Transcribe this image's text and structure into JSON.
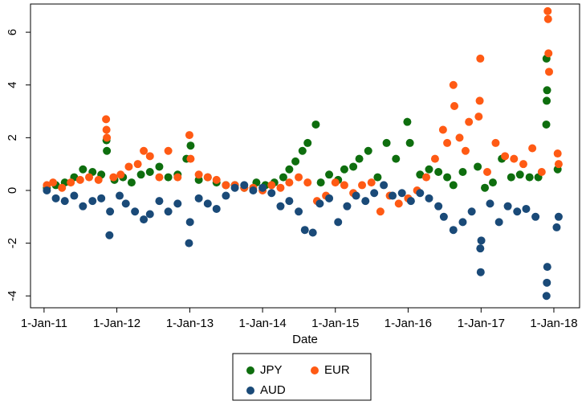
{
  "chart_data": {
    "type": "scatter",
    "x_label": "Date",
    "xlim": [
      "2010-10-25",
      "2018-05-10"
    ],
    "xticks": [
      {
        "value": "2011-01-01",
        "label": "1-Jan-11"
      },
      {
        "value": "2012-01-01",
        "label": "1-Jan-12"
      },
      {
        "value": "2013-01-01",
        "label": "1-Jan-13"
      },
      {
        "value": "2014-01-01",
        "label": "1-Jan-14"
      },
      {
        "value": "2015-01-01",
        "label": "1-Jan-15"
      },
      {
        "value": "2016-01-01",
        "label": "1-Jan-16"
      },
      {
        "value": "2017-01-01",
        "label": "1-Jan-17"
      },
      {
        "value": "2018-01-01",
        "label": "1-Jan-18"
      }
    ],
    "ylim": [
      -4.45,
      7.07
    ],
    "yticks": [
      -4,
      -2,
      0,
      2,
      4,
      6
    ],
    "grid": false,
    "legend": "bottom",
    "series": [
      {
        "name": "JPY",
        "color": "#0e6e0e",
        "x": [
          "2011-01-15",
          "2011-03-01",
          "2011-04-15",
          "2011-06-01",
          "2011-07-15",
          "2011-09-01",
          "2011-10-15",
          "2011-11-10",
          "2011-11-12",
          "2011-12-20",
          "2012-02-01",
          "2012-03-15",
          "2012-05-01",
          "2012-06-15",
          "2012-08-01",
          "2012-09-15",
          "2012-11-01",
          "2012-12-15",
          "2013-01-05",
          "2013-02-15",
          "2013-04-01",
          "2013-05-15",
          "2013-07-01",
          "2013-08-15",
          "2013-10-01",
          "2013-12-01",
          "2014-01-15",
          "2014-03-01",
          "2014-04-15",
          "2014-05-15",
          "2014-06-15",
          "2014-07-20",
          "2014-08-15",
          "2014-09-25",
          "2014-10-20",
          "2014-12-01",
          "2015-01-15",
          "2015-02-15",
          "2015-04-01",
          "2015-05-01",
          "2015-06-15",
          "2015-08-01",
          "2015-09-15",
          "2015-11-01",
          "2015-12-28",
          "2016-01-10",
          "2016-03-01",
          "2016-04-15",
          "2016-06-01",
          "2016-07-15",
          "2016-08-15",
          "2016-10-01",
          "2016-12-15",
          "2017-01-20",
          "2017-03-01",
          "2017-04-15",
          "2017-06-01",
          "2017-07-15",
          "2017-09-01",
          "2017-10-15",
          "2017-11-25",
          "2017-11-28",
          "2017-11-26",
          "2017-11-24",
          "2018-01-20"
        ],
        "values": [
          0.1,
          0.2,
          0.3,
          0.5,
          0.8,
          0.7,
          0.6,
          1.9,
          1.5,
          0.4,
          0.5,
          0.3,
          0.6,
          0.7,
          0.9,
          0.5,
          0.6,
          1.2,
          1.7,
          0.4,
          0.5,
          0.3,
          0.2,
          0.2,
          0.1,
          0.3,
          0.2,
          0.3,
          0.5,
          0.8,
          1.1,
          1.5,
          1.8,
          2.5,
          0.3,
          0.6,
          0.4,
          0.8,
          0.9,
          1.2,
          1.5,
          0.5,
          1.8,
          1.2,
          2.6,
          1.8,
          0.6,
          0.8,
          0.7,
          0.5,
          0.2,
          0.7,
          0.9,
          0.1,
          0.3,
          1.2,
          0.5,
          0.6,
          0.5,
          0.5,
          5.0,
          3.8,
          3.4,
          2.5,
          0.8
        ]
      },
      {
        "name": "EUR",
        "color": "#ff5a14",
        "x": [
          "2011-01-15",
          "2011-02-15",
          "2011-04-01",
          "2011-05-15",
          "2011-07-01",
          "2011-08-15",
          "2011-10-01",
          "2011-11-08",
          "2011-11-10",
          "2011-11-12",
          "2011-12-15",
          "2012-01-20",
          "2012-03-01",
          "2012-04-15",
          "2012-05-15",
          "2012-06-15",
          "2012-08-01",
          "2012-09-15",
          "2012-11-01",
          "2012-12-30",
          "2013-01-05",
          "2013-02-15",
          "2013-04-01",
          "2013-05-15",
          "2013-07-01",
          "2013-08-15",
          "2013-10-01",
          "2013-11-15",
          "2014-01-01",
          "2014-02-15",
          "2014-04-01",
          "2014-05-15",
          "2014-07-01",
          "2014-08-15",
          "2014-10-01",
          "2014-11-15",
          "2015-01-01",
          "2015-02-15",
          "2015-04-01",
          "2015-05-15",
          "2015-07-01",
          "2015-08-15",
          "2015-10-01",
          "2015-11-15",
          "2016-01-01",
          "2016-02-15",
          "2016-04-01",
          "2016-05-15",
          "2016-06-24",
          "2016-07-15",
          "2016-08-15",
          "2016-08-20",
          "2016-09-15",
          "2016-10-15",
          "2016-11-01",
          "2016-12-28",
          "2016-12-25",
          "2016-12-20",
          "2017-02-01",
          "2017-03-15",
          "2017-05-01",
          "2017-06-15",
          "2017-08-01",
          "2017-09-15",
          "2017-11-01",
          "2017-12-01",
          "2017-12-03",
          "2017-12-05",
          "2017-12-08",
          "2018-01-20",
          "2018-01-25"
        ],
        "values": [
          0.2,
          0.3,
          0.1,
          0.3,
          0.4,
          0.5,
          0.4,
          2.7,
          2.3,
          2.0,
          0.5,
          0.6,
          0.9,
          1.0,
          1.5,
          1.3,
          0.5,
          1.5,
          0.5,
          2.1,
          1.2,
          0.6,
          0.5,
          0.4,
          0.2,
          0.2,
          0.1,
          0.1,
          0.0,
          0.2,
          0.1,
          0.3,
          0.5,
          0.3,
          -0.4,
          -0.2,
          0.3,
          0.2,
          -0.1,
          0.2,
          0.3,
          -0.8,
          -0.2,
          -0.5,
          -0.3,
          0.0,
          0.5,
          1.2,
          2.3,
          1.8,
          4.0,
          3.2,
          2.0,
          1.5,
          2.6,
          5.0,
          3.4,
          2.8,
          0.7,
          1.8,
          1.3,
          1.2,
          1.0,
          1.6,
          0.7,
          6.8,
          6.5,
          5.2,
          4.5,
          1.4,
          1.0
        ]
      },
      {
        "name": "AUD",
        "color": "#1a4a78",
        "x": [
          "2011-01-15",
          "2011-03-01",
          "2011-04-15",
          "2011-06-01",
          "2011-07-15",
          "2011-09-01",
          "2011-10-15",
          "2011-11-25",
          "2011-11-28",
          "2012-01-15",
          "2012-02-15",
          "2012-04-01",
          "2012-05-15",
          "2012-06-15",
          "2012-08-01",
          "2012-09-15",
          "2012-11-01",
          "2012-12-28",
          "2013-01-02",
          "2013-02-15",
          "2013-04-01",
          "2013-05-15",
          "2013-07-01",
          "2013-08-15",
          "2013-10-01",
          "2013-11-15",
          "2014-01-01",
          "2014-02-15",
          "2014-04-01",
          "2014-05-15",
          "2014-07-01",
          "2014-08-01",
          "2014-09-10",
          "2014-10-15",
          "2014-12-01",
          "2015-01-15",
          "2015-03-01",
          "2015-04-15",
          "2015-06-01",
          "2015-07-15",
          "2015-09-01",
          "2015-10-15",
          "2015-12-01",
          "2016-01-15",
          "2016-03-01",
          "2016-04-15",
          "2016-06-01",
          "2016-06-28",
          "2016-08-15",
          "2016-10-01",
          "2016-11-15",
          "2016-12-30",
          "2016-12-28",
          "2017-01-02",
          "2017-02-15",
          "2017-04-01",
          "2017-05-15",
          "2017-07-01",
          "2017-08-15",
          "2017-10-01",
          "2017-11-25",
          "2017-11-27",
          "2017-11-29",
          "2018-01-15",
          "2018-01-25"
        ],
        "values": [
          0.0,
          -0.3,
          -0.4,
          -0.2,
          -0.6,
          -0.4,
          -0.3,
          -1.7,
          -0.8,
          -0.2,
          -0.5,
          -0.8,
          -1.1,
          -0.9,
          -0.4,
          -0.8,
          -0.5,
          -2.0,
          -1.2,
          -0.3,
          -0.5,
          -0.7,
          -0.2,
          0.1,
          0.2,
          0.0,
          0.1,
          -0.1,
          -0.6,
          -0.4,
          -0.8,
          -1.5,
          -1.6,
          -0.5,
          -0.3,
          -1.2,
          -0.6,
          -0.2,
          -0.4,
          -0.1,
          0.2,
          -0.2,
          -0.1,
          -0.4,
          -0.1,
          -0.3,
          -0.6,
          -1.0,
          -1.5,
          -1.2,
          -0.8,
          -3.1,
          -2.2,
          -1.9,
          -0.5,
          -1.2,
          -0.6,
          -0.8,
          -0.7,
          -1.0,
          -4.0,
          -3.5,
          -2.9,
          -1.4,
          -1.0
        ]
      }
    ]
  }
}
